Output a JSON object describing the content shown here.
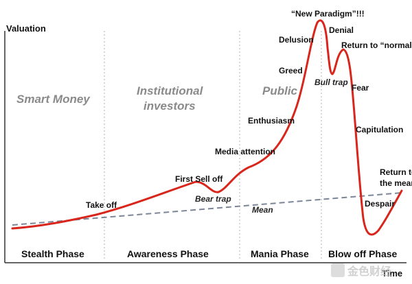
{
  "axes": {
    "y_title": "Valuation",
    "x_title": "Time"
  },
  "phases": [
    "Stealth Phase",
    "Awareness Phase",
    "Mania Phase",
    "Blow off Phase"
  ],
  "players": {
    "smart_money": "Smart Money",
    "institutional_line1": "Institutional",
    "institutional_line2": "investors",
    "public": "Public"
  },
  "stages": {
    "take_off": "Take off",
    "first_sell_off": "First Sell off",
    "bear_trap": "Bear trap",
    "mean": "Mean",
    "media_attention": "Media attention",
    "enthusiasm": "Enthusiasm",
    "greed": "Greed",
    "delusion": "Delusion",
    "new_paradigm": "“New Paradigm”!!!",
    "denial": "Denial",
    "return_normal": "Return to “normal”",
    "bull_trap": "Bull trap",
    "fear": "Fear",
    "capitulation": "Capitulation",
    "return_mean_line1": "Return to",
    "return_mean_line2": "the mean",
    "despair": "Despair"
  },
  "watermark": "金色财经",
  "colors": {
    "curve": "#d9261c",
    "mean_line": "#7a8595",
    "divider": "#b0b0b0",
    "axis": "#333333"
  }
}
